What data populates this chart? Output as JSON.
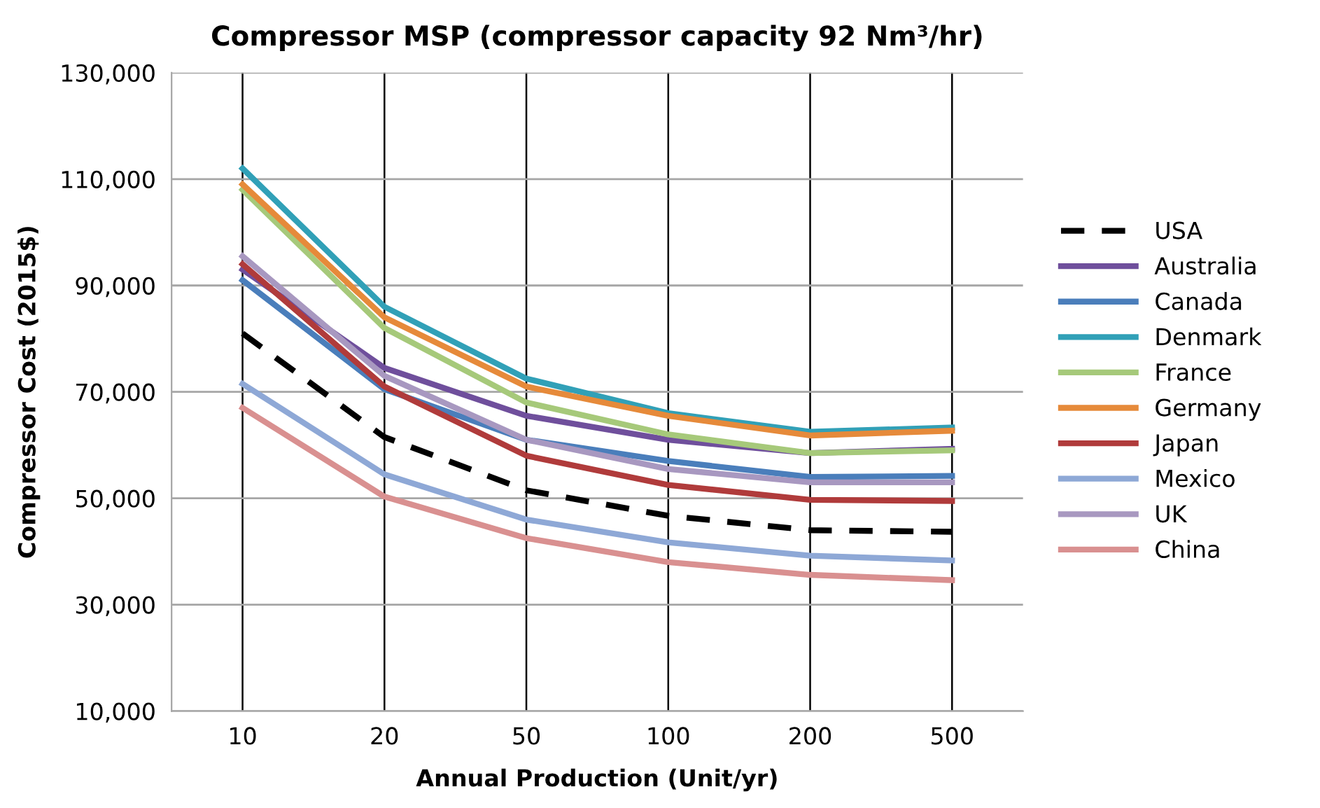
{
  "chart_data": {
    "type": "line",
    "title": "Compressor MSP (compressor capacity 92 Nm³/hr)",
    "xlabel": "Annual Production (Unit/yr)",
    "ylabel": "Compressor Cost (2015$)",
    "categories": [
      "10",
      "20",
      "50",
      "100",
      "200",
      "500"
    ],
    "ylim": [
      10000,
      130000
    ],
    "yticks": [
      {
        "value": 10000,
        "label": "10,000"
      },
      {
        "value": 30000,
        "label": "30,000"
      },
      {
        "value": 50000,
        "label": "50,000"
      },
      {
        "value": 70000,
        "label": "70,000"
      },
      {
        "value": 90000,
        "label": "90,000"
      },
      {
        "value": 110000,
        "label": "110,000"
      },
      {
        "value": 130000,
        "label": "130,000"
      }
    ],
    "grid": true,
    "legend": "right",
    "marker": "none",
    "series": [
      {
        "name": "USA",
        "color": "#000000",
        "line_style": "dashed",
        "values": [
          81000,
          61500,
          51500,
          46700,
          44000,
          43700
        ]
      },
      {
        "name": "Australia",
        "color": "#6f4f9c",
        "values": [
          93000,
          74500,
          65500,
          61000,
          58500,
          59300
        ]
      },
      {
        "name": "Canada",
        "color": "#4a7ebb",
        "values": [
          91000,
          70500,
          61000,
          57000,
          54000,
          54200
        ]
      },
      {
        "name": "Denmark",
        "color": "#31a0b7",
        "values": [
          112000,
          86000,
          72500,
          66000,
          62500,
          63300
        ]
      },
      {
        "name": "France",
        "color": "#a6c97a",
        "values": [
          108000,
          82000,
          68000,
          62000,
          58500,
          59000
        ]
      },
      {
        "name": "Germany",
        "color": "#e68a3a",
        "values": [
          109000,
          84000,
          71000,
          65500,
          61800,
          62700
        ]
      },
      {
        "name": "Japan",
        "color": "#b03b3b",
        "values": [
          94000,
          71000,
          58000,
          52500,
          49700,
          49500
        ]
      },
      {
        "name": "Mexico",
        "color": "#8ea8d6",
        "values": [
          71500,
          54500,
          46000,
          41700,
          39200,
          38300
        ]
      },
      {
        "name": "UK",
        "color": "#a898c0",
        "values": [
          95500,
          73000,
          61000,
          55500,
          53000,
          53000
        ]
      },
      {
        "name": "China",
        "color": "#d99090",
        "values": [
          67000,
          50300,
          42500,
          38000,
          35600,
          34600
        ]
      }
    ]
  }
}
